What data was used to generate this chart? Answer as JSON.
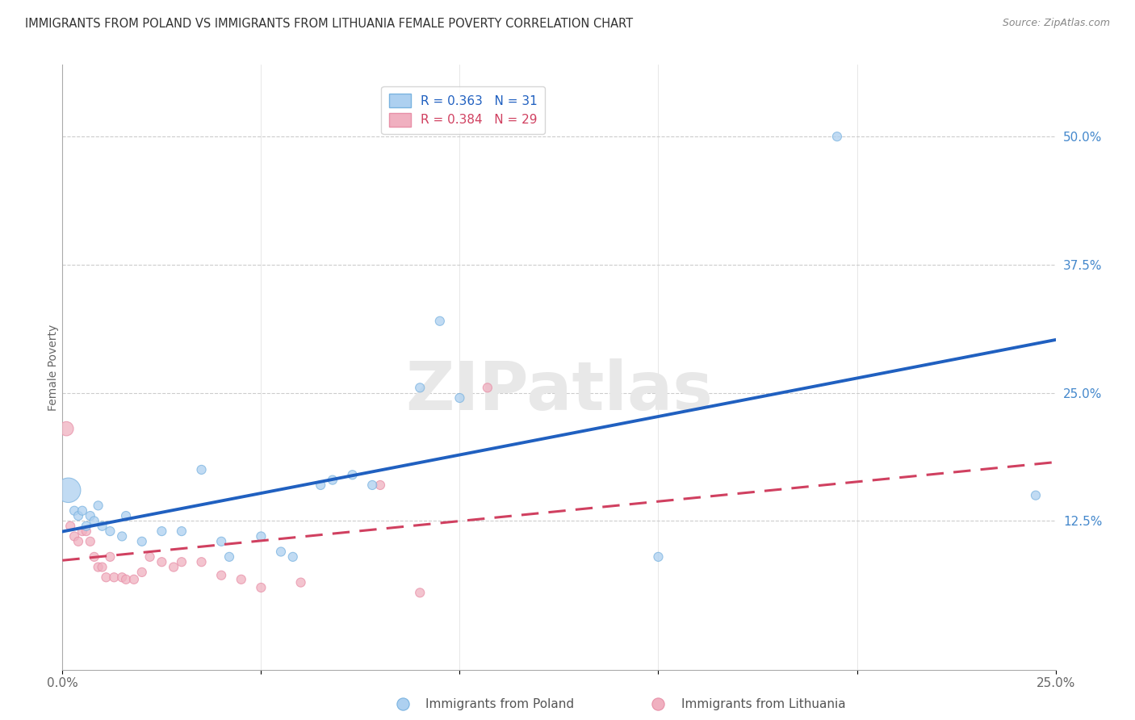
{
  "title": "IMMIGRANTS FROM POLAND VS IMMIGRANTS FROM LITHUANIA FEMALE POVERTY CORRELATION CHART",
  "source": "Source: ZipAtlas.com",
  "ylabel": "Female Poverty",
  "xlim": [
    0.0,
    0.25
  ],
  "ylim": [
    -0.02,
    0.57
  ],
  "xticks": [
    0.0,
    0.05,
    0.1,
    0.15,
    0.2,
    0.25
  ],
  "xtick_labels": [
    "0.0%",
    "",
    "",
    "",
    "",
    "25.0%"
  ],
  "ytick_labels_right": [
    "50.0%",
    "37.5%",
    "25.0%",
    "12.5%"
  ],
  "yticks_right": [
    0.5,
    0.375,
    0.25,
    0.125
  ],
  "poland_color_edge": "#7ab3e0",
  "poland_color_fill": "#add0f0",
  "poland_line_color": "#2060c0",
  "lithuania_color_edge": "#e890a8",
  "lithuania_color_fill": "#f0b0c0",
  "lithuania_line_color": "#d04060",
  "legend_line1": "R = 0.363   N = 31",
  "legend_line2": "R = 0.384   N = 29",
  "poland_label": "Immigrants from Poland",
  "lithuania_label": "Immigrants from Lithuania",
  "watermark": "ZIPatlas",
  "poland_data": [
    [
      0.0015,
      0.155,
      600
    ],
    [
      0.003,
      0.135,
      80
    ],
    [
      0.004,
      0.13,
      80
    ],
    [
      0.005,
      0.135,
      80
    ],
    [
      0.006,
      0.12,
      80
    ],
    [
      0.007,
      0.13,
      80
    ],
    [
      0.008,
      0.125,
      80
    ],
    [
      0.009,
      0.14,
      80
    ],
    [
      0.01,
      0.12,
      80
    ],
    [
      0.012,
      0.115,
      80
    ],
    [
      0.015,
      0.11,
      80
    ],
    [
      0.016,
      0.13,
      80
    ],
    [
      0.02,
      0.105,
      80
    ],
    [
      0.025,
      0.115,
      80
    ],
    [
      0.03,
      0.115,
      80
    ],
    [
      0.035,
      0.175,
      80
    ],
    [
      0.04,
      0.105,
      80
    ],
    [
      0.042,
      0.09,
      80
    ],
    [
      0.05,
      0.11,
      80
    ],
    [
      0.055,
      0.095,
      80
    ],
    [
      0.058,
      0.09,
      80
    ],
    [
      0.065,
      0.16,
      80
    ],
    [
      0.068,
      0.165,
      80
    ],
    [
      0.073,
      0.17,
      80
    ],
    [
      0.078,
      0.16,
      80
    ],
    [
      0.09,
      0.255,
      80
    ],
    [
      0.095,
      0.32,
      80
    ],
    [
      0.1,
      0.245,
      80
    ],
    [
      0.15,
      0.09,
      80
    ],
    [
      0.195,
      0.5,
      80
    ],
    [
      0.245,
      0.15,
      80
    ]
  ],
  "lithuania_data": [
    [
      0.001,
      0.215,
      200
    ],
    [
      0.002,
      0.12,
      80
    ],
    [
      0.003,
      0.11,
      80
    ],
    [
      0.004,
      0.105,
      80
    ],
    [
      0.005,
      0.115,
      80
    ],
    [
      0.006,
      0.115,
      80
    ],
    [
      0.007,
      0.105,
      80
    ],
    [
      0.008,
      0.09,
      80
    ],
    [
      0.009,
      0.08,
      80
    ],
    [
      0.01,
      0.08,
      80
    ],
    [
      0.011,
      0.07,
      80
    ],
    [
      0.012,
      0.09,
      80
    ],
    [
      0.013,
      0.07,
      80
    ],
    [
      0.015,
      0.07,
      80
    ],
    [
      0.016,
      0.068,
      80
    ],
    [
      0.018,
      0.068,
      80
    ],
    [
      0.02,
      0.075,
      80
    ],
    [
      0.022,
      0.09,
      80
    ],
    [
      0.025,
      0.085,
      80
    ],
    [
      0.028,
      0.08,
      80
    ],
    [
      0.03,
      0.085,
      80
    ],
    [
      0.035,
      0.085,
      80
    ],
    [
      0.04,
      0.072,
      80
    ],
    [
      0.045,
      0.068,
      80
    ],
    [
      0.05,
      0.06,
      80
    ],
    [
      0.06,
      0.065,
      80
    ],
    [
      0.08,
      0.16,
      80
    ],
    [
      0.09,
      0.055,
      80
    ],
    [
      0.107,
      0.255,
      80
    ]
  ]
}
